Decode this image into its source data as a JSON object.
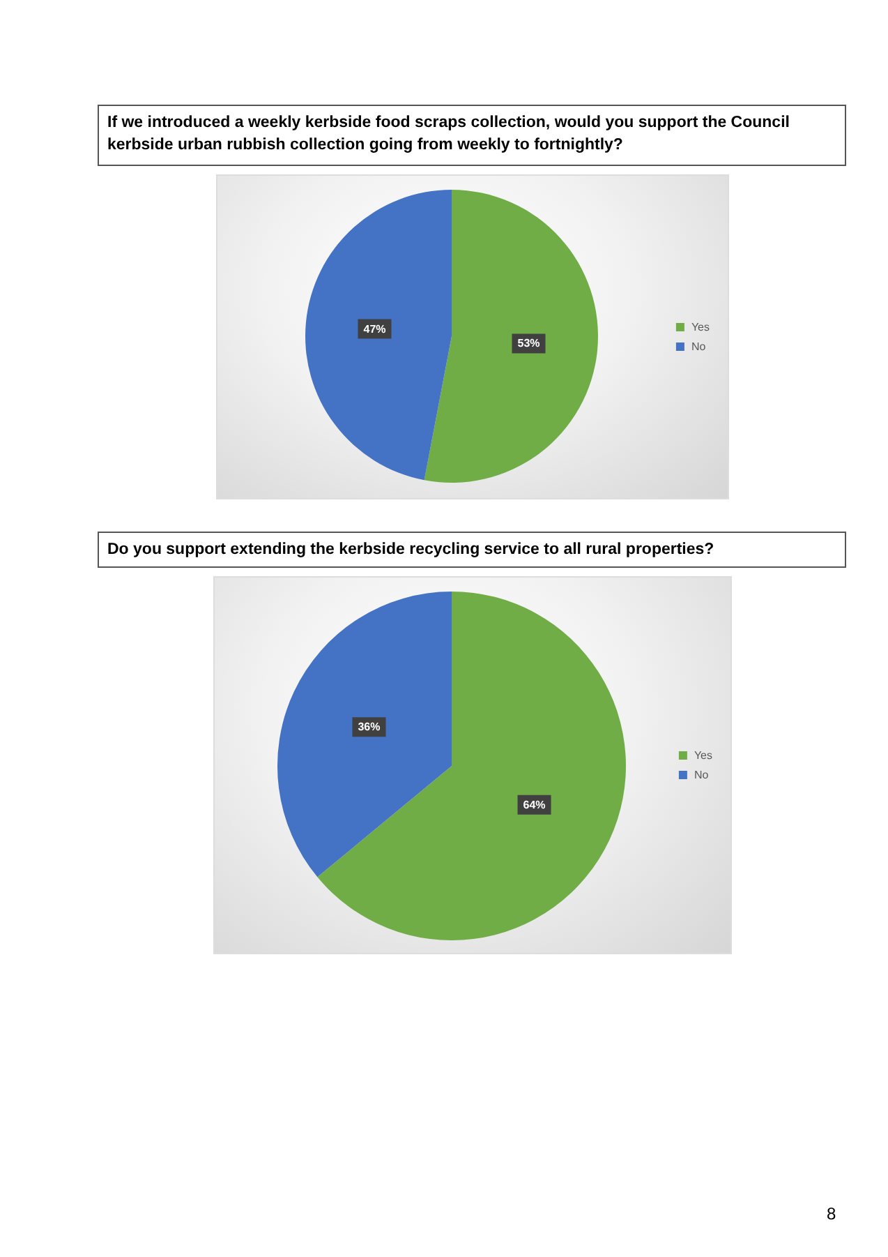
{
  "chart_data": [
    {
      "type": "pie",
      "title": "If we introduced a weekly kerbside food scraps collection, would you support the Council kerbside urban rubbish collection going from weekly to fortnightly?",
      "categories": [
        "Yes",
        "No"
      ],
      "values": [
        53,
        47
      ],
      "value_labels": [
        "53%",
        "47%"
      ],
      "colors": [
        "#70ad47",
        "#4472c4"
      ],
      "legend": "right"
    },
    {
      "type": "pie",
      "title": "Do you support extending the kerbside recycling service to all rural properties?",
      "categories": [
        "Yes",
        "No"
      ],
      "values": [
        64,
        36
      ],
      "value_labels": [
        "64%",
        "36%"
      ],
      "colors": [
        "#70ad47",
        "#4472c4"
      ],
      "legend": "right",
      "annotations": [
        "8"
      ]
    }
  ]
}
